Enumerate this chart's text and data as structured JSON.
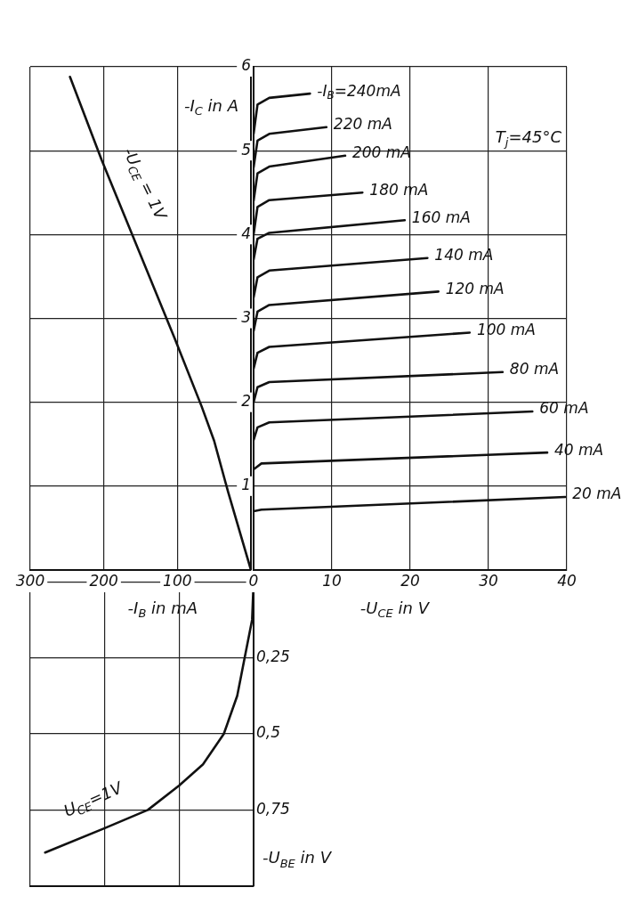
{
  "chart_data": [
    {
      "type": "line",
      "xlabel": "-U$_{CE}$ in V",
      "annotations": [
        "T$_{j}$=45°C"
      ],
      "xlim": [
        0,
        40
      ],
      "xticks": [
        0,
        10,
        20,
        30,
        40
      ],
      "ylim": [
        0,
        6
      ],
      "yticks": [
        {
          "value": 0,
          "label": null
        },
        1,
        2,
        3,
        4,
        5,
        6
      ],
      "grid": true,
      "marker": "none",
      "series": [
        {
          "name": "-I$_{B}$=240mA",
          "color": "#111111",
          "x": [
            0,
            0.5,
            2,
            7.2
          ],
          "values": [
            5.2,
            5.55,
            5.63,
            5.68
          ]
        },
        {
          "name": "220 mA",
          "color": "#111111",
          "x": [
            0,
            0.5,
            2,
            9.3
          ],
          "values": [
            4.8,
            5.12,
            5.2,
            5.28
          ]
        },
        {
          "name": "200 mA",
          "color": "#111111",
          "x": [
            0,
            0.5,
            2,
            11.7
          ],
          "values": [
            4.4,
            4.73,
            4.81,
            4.94
          ]
        },
        {
          "name": "180 mA",
          "color": "#111111",
          "x": [
            0,
            0.5,
            2,
            13.9
          ],
          "values": [
            4.0,
            4.33,
            4.41,
            4.5
          ]
        },
        {
          "name": "160 mA",
          "color": "#111111",
          "x": [
            0,
            0.5,
            2,
            19.3
          ],
          "values": [
            3.7,
            3.95,
            4.02,
            4.17
          ]
        },
        {
          "name": "140 mA",
          "color": "#111111",
          "x": [
            0,
            0.5,
            2,
            22.2
          ],
          "values": [
            3.25,
            3.49,
            3.57,
            3.72
          ]
        },
        {
          "name": "120 mA",
          "color": "#111111",
          "x": [
            0,
            0.5,
            2,
            23.6
          ],
          "values": [
            2.85,
            3.08,
            3.16,
            3.32
          ]
        },
        {
          "name": "100 mA",
          "color": "#111111",
          "x": [
            0,
            0.5,
            2,
            27.6
          ],
          "values": [
            2.4,
            2.59,
            2.66,
            2.83
          ]
        },
        {
          "name": "80 mA",
          "color": "#111111",
          "x": [
            0,
            0.5,
            2,
            31.8
          ],
          "values": [
            2.0,
            2.18,
            2.24,
            2.36
          ]
        },
        {
          "name": "60 mA",
          "color": "#111111",
          "x": [
            0,
            0.5,
            2,
            35.6
          ],
          "values": [
            1.55,
            1.7,
            1.76,
            1.89
          ]
        },
        {
          "name": "40 mA",
          "color": "#111111",
          "x": [
            0,
            1,
            37.5
          ],
          "values": [
            1.2,
            1.27,
            1.4
          ]
        },
        {
          "name": "20 mA",
          "color": "#111111",
          "x": [
            0,
            1,
            39.8
          ],
          "values": [
            0.7,
            0.72,
            0.87
          ]
        }
      ]
    },
    {
      "type": "line",
      "xlabel": "-I$_{B}$ in mA",
      "ylabel": "-I$_{C}$ in A",
      "annotations": [
        "-U$_{CE}$ = 1V"
      ],
      "xlim": [
        300,
        0
      ],
      "xticks": [
        300,
        200,
        100,
        {
          "value": 0,
          "label": null
        }
      ],
      "ylim": [
        0,
        6
      ],
      "yticks": [
        0,
        1,
        2,
        3,
        4,
        5,
        6
      ],
      "tick_labels": "x",
      "grid": true,
      "marker": "none",
      "series": [
        {
          "color": "#111111",
          "x": [
            246,
            203,
            104,
            67,
            50,
            31,
            0
          ],
          "values": [
            5.88,
            4.89,
            2.77,
            1.95,
            1.54,
            0.93,
            0
          ]
        }
      ]
    },
    {
      "type": "line",
      "ylabel": "-U$_{BE}$ in V",
      "annotations": [
        "U$_{CE}$=1V"
      ],
      "xlim": [
        300,
        0
      ],
      "xticks": [
        300,
        200,
        100,
        0
      ],
      "ylim": [
        1,
        0
      ],
      "yticks": [
        {
          "value": 0,
          "label": null
        },
        {
          "value": 0.25,
          "label": "0,25"
        },
        {
          "value": 0.5,
          "label": "0,5"
        },
        {
          "value": 0.75,
          "label": "0,75"
        },
        {
          "value": 1,
          "label": null
        }
      ],
      "tick_labels": "y",
      "grid": true,
      "marker": "none",
      "series": [
        {
          "color": "#111111",
          "x": [
            0,
            2,
            12,
            22,
            40,
            68,
            100,
            142,
            200,
            280
          ],
          "values": [
            0,
            0.125,
            0.25,
            0.375,
            0.5,
            0.6,
            0.67,
            0.75,
            0.81,
            0.89
          ]
        }
      ]
    }
  ]
}
